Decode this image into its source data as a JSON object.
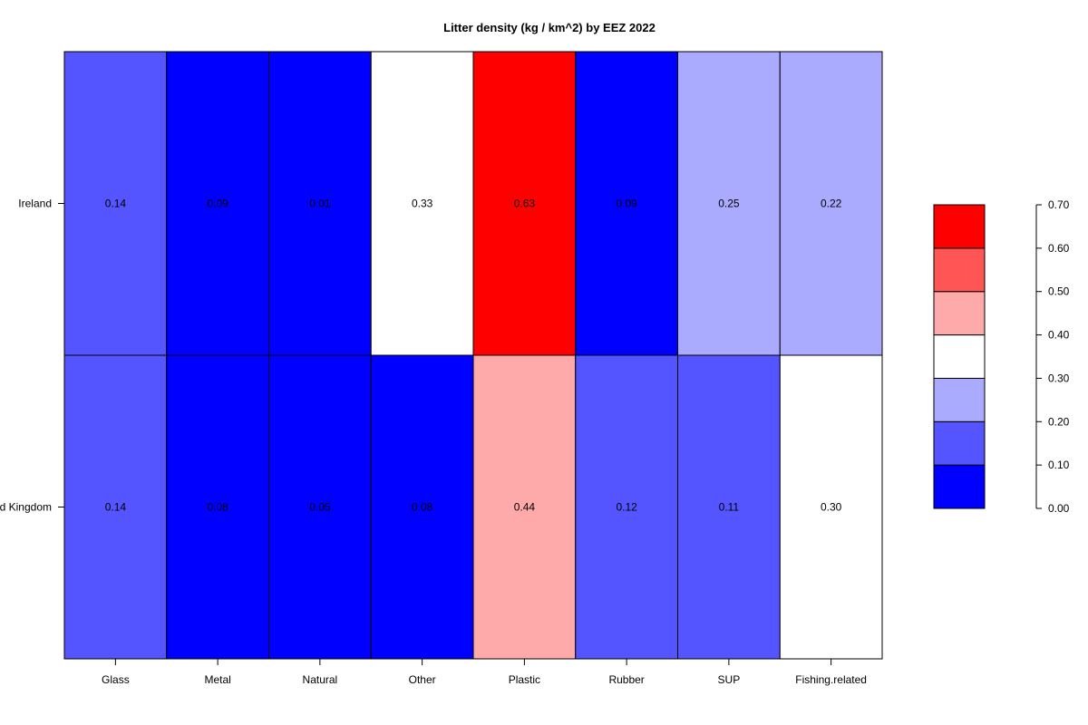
{
  "chart_data": {
    "type": "heatmap",
    "title": "Litter density (kg / km^2) by EEZ 2022",
    "xlabel": "",
    "ylabel": "",
    "columns": [
      "Glass",
      "Metal",
      "Natural",
      "Other",
      "Plastic",
      "Rubber",
      "SUP",
      "Fishing.related"
    ],
    "rows": [
      "Ireland",
      "United Kingdom"
    ],
    "row_labels_visible": [
      "Ireland",
      "d Kingdom"
    ],
    "values": [
      [
        0.14,
        0.09,
        0.01,
        0.33,
        0.63,
        0.09,
        0.25,
        0.22
      ],
      [
        0.14,
        0.08,
        0.05,
        0.08,
        0.44,
        0.12,
        0.11,
        0.3
      ]
    ],
    "value_labels": [
      [
        "0.14",
        "0.09",
        "0.01",
        "0.33",
        "0.63",
        "0.09",
        "0.25",
        "0.22"
      ],
      [
        "0.14",
        "0.08",
        "0.05",
        "0.08",
        "0.44",
        "0.12",
        "0.11",
        "0.30"
      ]
    ],
    "color_scale": {
      "breaks": [
        0.0,
        0.1,
        0.2,
        0.3,
        0.4,
        0.5,
        0.6,
        0.7
      ],
      "colors": [
        "#0000ff",
        "#5555ff",
        "#aaaaff",
        "#ffffff",
        "#ffaaaa",
        "#ff5555",
        "#ff0000"
      ],
      "tick_labels": [
        "0.00",
        "0.10",
        "0.20",
        "0.30",
        "0.40",
        "0.50",
        "0.60",
        "0.70"
      ],
      "range": [
        0.0,
        0.7
      ]
    },
    "legend_position": "right",
    "grid": false
  }
}
